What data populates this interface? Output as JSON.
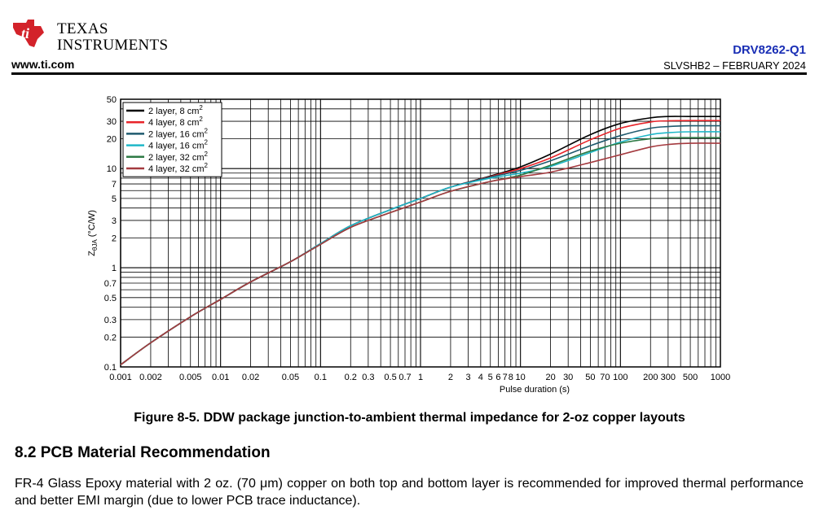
{
  "header": {
    "logo_line1": "TEXAS",
    "logo_line2": "INSTRUMENTS",
    "website": "www.ti.com",
    "doc_id": "DRV8262-Q1",
    "doc_number": "SLVSHB2 – FEBRUARY 2024"
  },
  "figure": {
    "caption": "Figure 8-5. DDW package junction-to-ambient thermal impedance for 2-oz copper layouts"
  },
  "section": {
    "heading": "8.2 PCB Material Recommendation",
    "body": "FR-4 Glass Epoxy material with 2 oz. (70 μm) copper on both top and bottom layer is recommended for improved thermal performance and better EMI margin (due to lower PCB trace inductance)."
  },
  "colors": {
    "ti_red": "#d3222a",
    "doc_blue": "#1a2fb5"
  },
  "chart_data": {
    "type": "line",
    "x_scale": "log",
    "y_scale": "log",
    "xlim": [
      0.001,
      1000
    ],
    "ylim": [
      0.1,
      50
    ],
    "xlabel": "Pulse duration (s)",
    "ylabel_main": "Z",
    "ylabel_sub": "θJA",
    "ylabel_unit": " (°C/W)",
    "grid": true,
    "legend_position": "top-left",
    "x_ticks": [
      {
        "v": 0.001,
        "l": "0.001"
      },
      {
        "v": 0.002,
        "l": "0.002"
      },
      {
        "v": 0.005,
        "l": "0.005"
      },
      {
        "v": 0.01,
        "l": "0.01"
      },
      {
        "v": 0.02,
        "l": "0.02"
      },
      {
        "v": 0.05,
        "l": "0.05"
      },
      {
        "v": 0.1,
        "l": "0.1"
      },
      {
        "v": 0.2,
        "l": "0.2"
      },
      {
        "v": 0.3,
        "l": "0.3"
      },
      {
        "v": 0.5,
        "l": "0.5"
      },
      {
        "v": 0.7,
        "l": "0.7"
      },
      {
        "v": 1,
        "l": "1"
      },
      {
        "v": 2,
        "l": "2"
      },
      {
        "v": 3,
        "l": "3"
      },
      {
        "v": 4,
        "l": "4"
      },
      {
        "v": 5,
        "l": "5"
      },
      {
        "v": 6,
        "l": "6"
      },
      {
        "v": 7,
        "l": "7"
      },
      {
        "v": 8,
        "l": "8"
      },
      {
        "v": 10,
        "l": "10"
      },
      {
        "v": 20,
        "l": "20"
      },
      {
        "v": 30,
        "l": "30"
      },
      {
        "v": 50,
        "l": "50"
      },
      {
        "v": 70,
        "l": "70"
      },
      {
        "v": 100,
        "l": "100"
      },
      {
        "v": 200,
        "l": "200"
      },
      {
        "v": 300,
        "l": "300"
      },
      {
        "v": 500,
        "l": "500"
      },
      {
        "v": 1000,
        "l": "1000"
      }
    ],
    "y_ticks": [
      {
        "v": 0.1,
        "l": "0.1"
      },
      {
        "v": 0.2,
        "l": "0.2"
      },
      {
        "v": 0.3,
        "l": "0.3"
      },
      {
        "v": 0.5,
        "l": "0.5"
      },
      {
        "v": 0.7,
        "l": "0.7"
      },
      {
        "v": 1,
        "l": "1"
      },
      {
        "v": 2,
        "l": "2"
      },
      {
        "v": 3,
        "l": "3"
      },
      {
        "v": 5,
        "l": "5"
      },
      {
        "v": 7,
        "l": "7"
      },
      {
        "v": 10,
        "l": "10"
      },
      {
        "v": 20,
        "l": "20"
      },
      {
        "v": 30,
        "l": "30"
      },
      {
        "v": 50,
        "l": "50"
      }
    ],
    "series": [
      {
        "name": "2 layer, 8 cm",
        "sup": "2",
        "color": "#000000",
        "x": [
          0.001,
          0.002,
          0.005,
          0.01,
          0.02,
          0.05,
          0.1,
          0.2,
          0.5,
          1,
          2,
          5,
          10,
          20,
          50,
          100,
          200,
          300,
          500,
          1000
        ],
        "y": [
          0.105,
          0.175,
          0.32,
          0.48,
          0.72,
          1.15,
          1.75,
          2.65,
          3.85,
          5.0,
          6.5,
          8.4,
          10.4,
          14.0,
          22.0,
          28.5,
          32.5,
          33.5,
          33.5,
          33.5
        ]
      },
      {
        "name": "4 layer, 8 cm",
        "sup": "2",
        "color": "#e8242a",
        "x": [
          0.001,
          0.002,
          0.005,
          0.01,
          0.02,
          0.05,
          0.1,
          0.2,
          0.5,
          1,
          2,
          5,
          10,
          20,
          50,
          100,
          200,
          300,
          500,
          1000
        ],
        "y": [
          0.105,
          0.175,
          0.32,
          0.48,
          0.72,
          1.15,
          1.75,
          2.65,
          3.85,
          5.0,
          6.5,
          8.3,
          10.0,
          12.8,
          19.5,
          25.5,
          29.5,
          30.3,
          30.5,
          30.5
        ]
      },
      {
        "name": "2 layer, 16 cm",
        "sup": "2",
        "color": "#1f5a6e",
        "x": [
          0.001,
          0.002,
          0.005,
          0.01,
          0.02,
          0.05,
          0.1,
          0.2,
          0.5,
          1,
          2,
          5,
          10,
          20,
          50,
          100,
          200,
          300,
          500,
          1000
        ],
        "y": [
          0.105,
          0.175,
          0.32,
          0.48,
          0.72,
          1.15,
          1.75,
          2.65,
          3.85,
          5.0,
          6.5,
          8.2,
          9.6,
          12.0,
          17.0,
          21.5,
          25.5,
          26.5,
          27.0,
          27.0
        ]
      },
      {
        "name": "4 layer, 16 cm",
        "sup": "2",
        "color": "#1fb8c8",
        "x": [
          0.001,
          0.002,
          0.005,
          0.01,
          0.02,
          0.05,
          0.1,
          0.2,
          0.5,
          1,
          2,
          5,
          10,
          20,
          50,
          100,
          200,
          300,
          500,
          1000
        ],
        "y": [
          0.105,
          0.175,
          0.32,
          0.48,
          0.72,
          1.15,
          1.75,
          2.65,
          3.85,
          5.0,
          6.5,
          8.0,
          9.0,
          10.5,
          14.5,
          18.5,
          22.0,
          23.0,
          23.5,
          23.5
        ]
      },
      {
        "name": "2 layer, 32 cm",
        "sup": "2",
        "color": "#2e7a45",
        "x": [
          0.001,
          0.002,
          0.005,
          0.01,
          0.02,
          0.05,
          0.1,
          0.2,
          0.5,
          1,
          2,
          5,
          10,
          20,
          50,
          100,
          200,
          300,
          500,
          1000
        ],
        "y": [
          0.105,
          0.175,
          0.32,
          0.48,
          0.72,
          1.15,
          1.72,
          2.55,
          3.6,
          4.6,
          5.9,
          7.4,
          8.6,
          10.8,
          15.0,
          18.0,
          20.0,
          20.5,
          20.5,
          20.5
        ]
      },
      {
        "name": "4 layer, 32 cm",
        "sup": "2",
        "color": "#a43a3f",
        "x": [
          0.001,
          0.002,
          0.005,
          0.01,
          0.02,
          0.05,
          0.1,
          0.2,
          0.5,
          1,
          2,
          5,
          10,
          20,
          50,
          100,
          200,
          300,
          500,
          1000
        ],
        "y": [
          0.105,
          0.175,
          0.32,
          0.48,
          0.72,
          1.15,
          1.72,
          2.55,
          3.6,
          4.6,
          5.9,
          7.4,
          8.3,
          9.2,
          11.5,
          13.8,
          16.5,
          17.5,
          18.0,
          18.0
        ]
      }
    ]
  }
}
